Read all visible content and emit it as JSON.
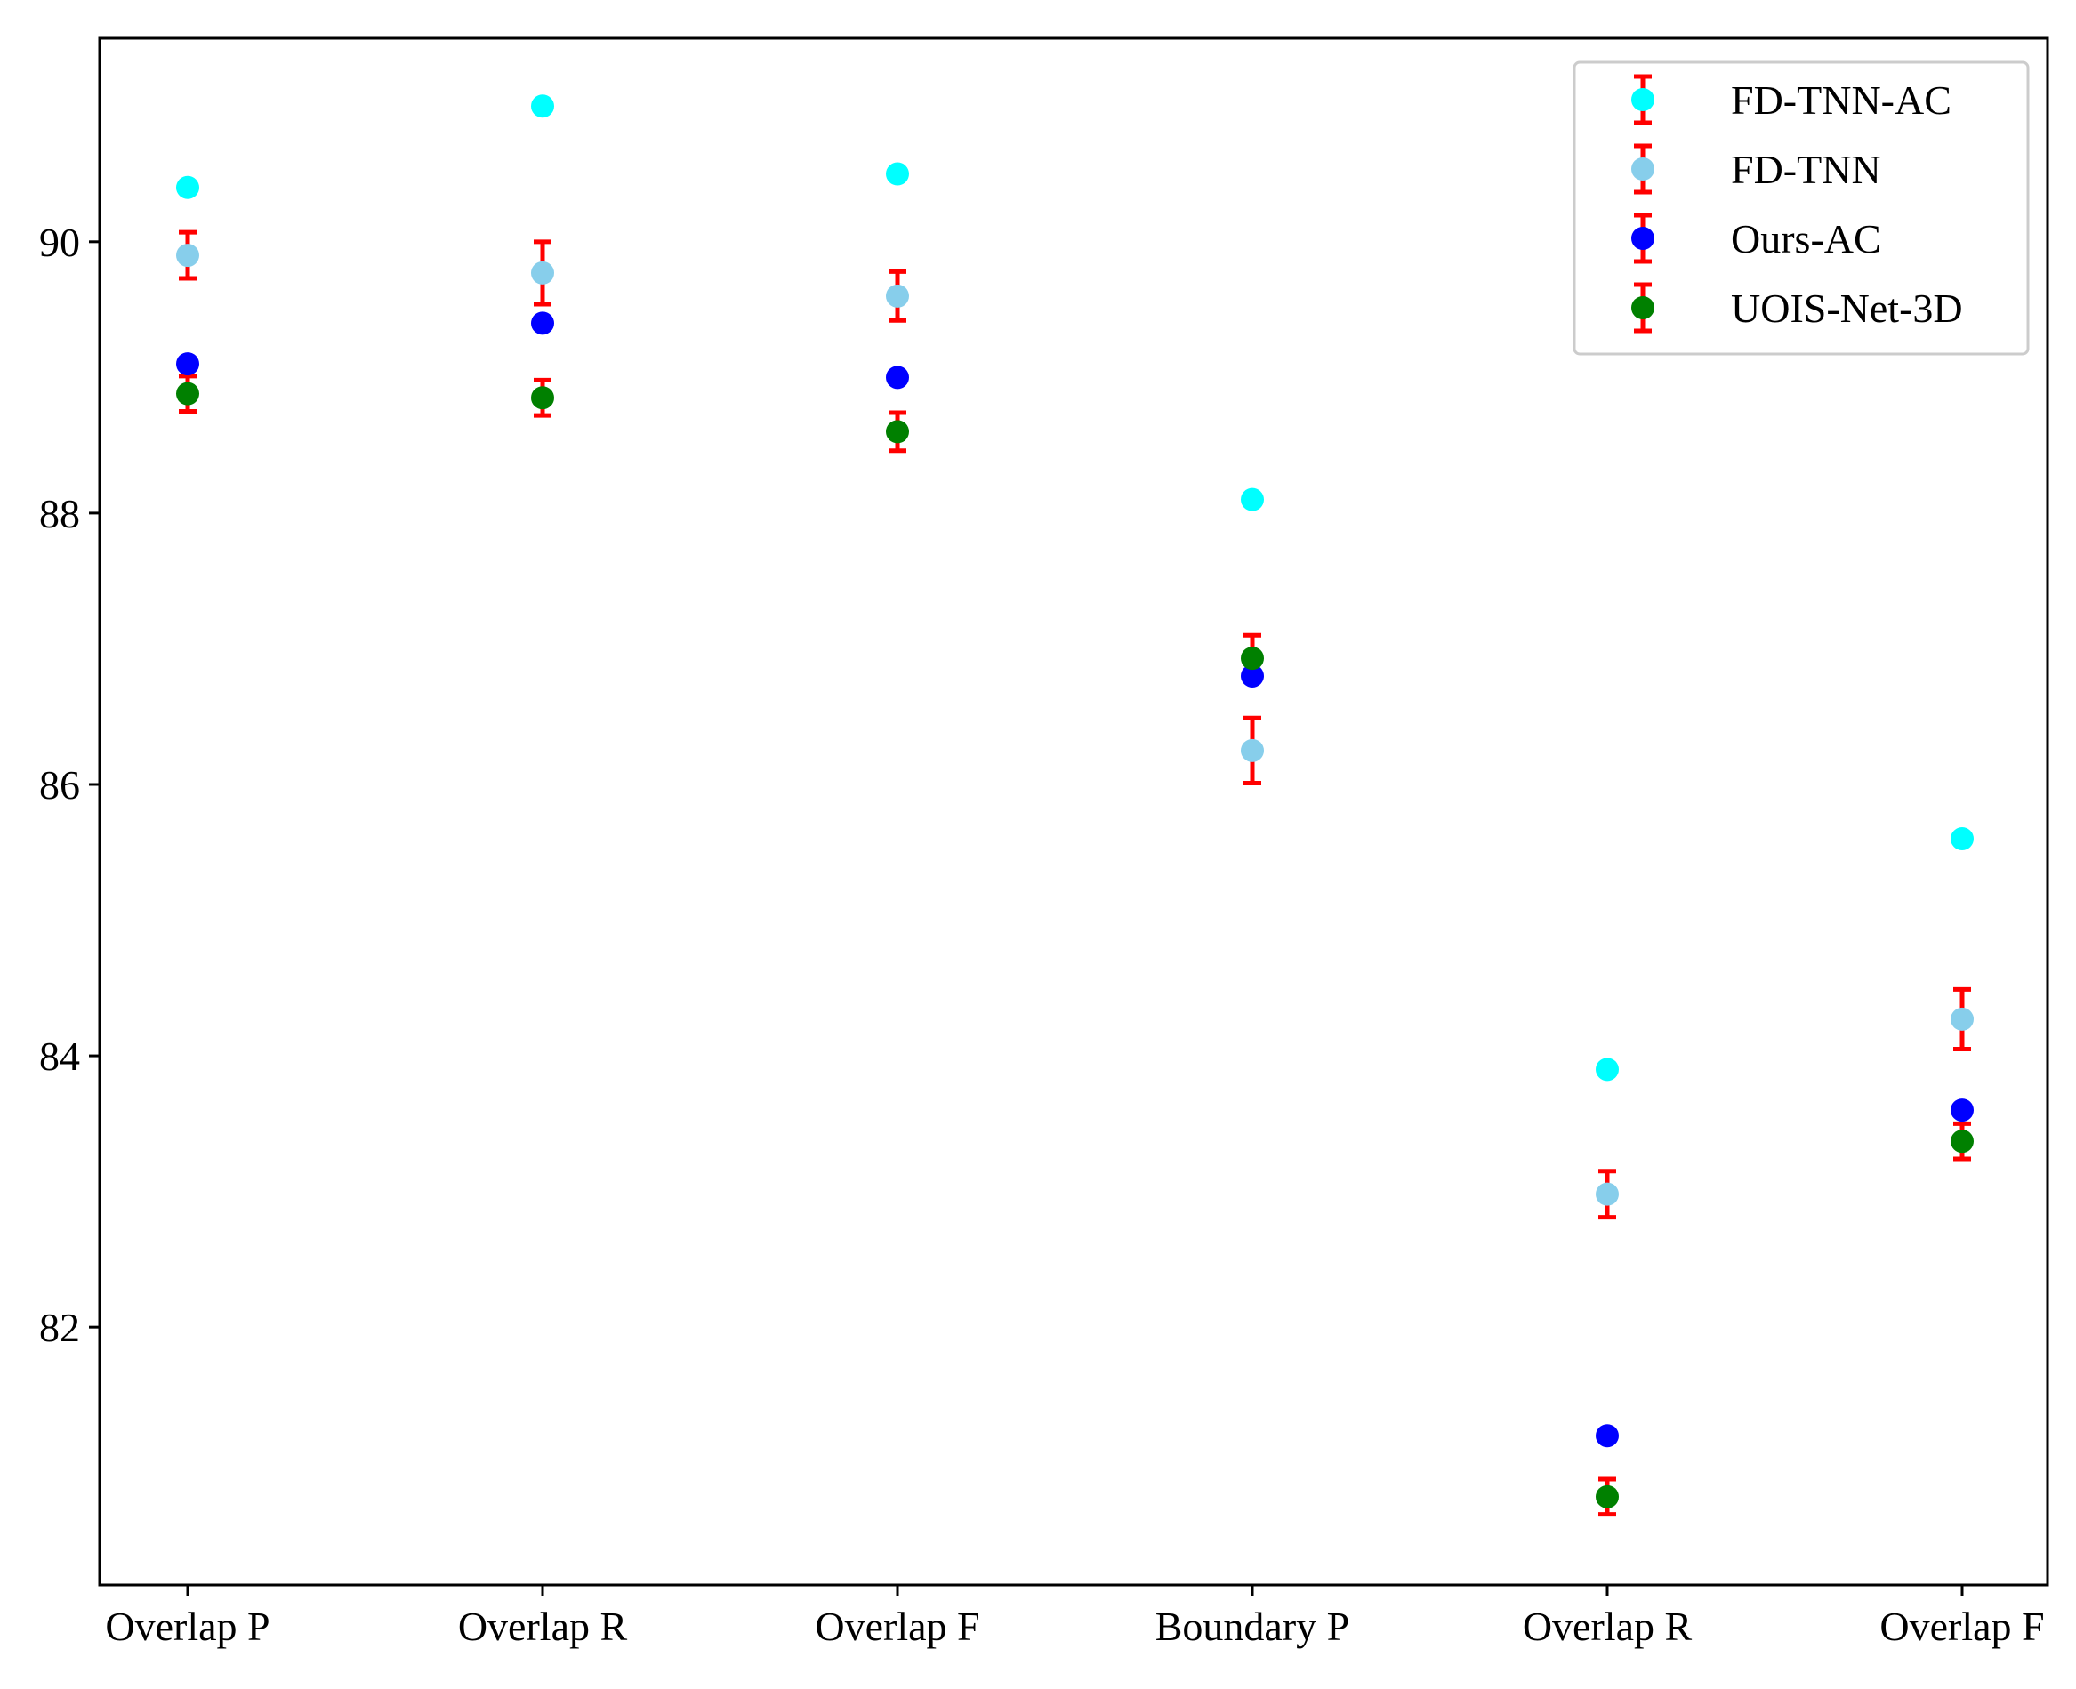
{
  "chart_data": {
    "type": "scatter",
    "title": "",
    "xlabel": "",
    "ylabel": "",
    "categories": [
      "Overlap P",
      "Overlap R",
      "Overlap F",
      "Boundary P",
      "Overlap R",
      "Overlap F"
    ],
    "ylim": [
      80.1,
      91.5
    ],
    "yticks": [
      82,
      84,
      86,
      88,
      90
    ],
    "grid": false,
    "legend_position": "top-right",
    "errorbar_color": "#ff0000",
    "series": [
      {
        "name": "FD-TNN-AC",
        "color": "#00ffff",
        "values": [
          90.4,
          91.0,
          90.5,
          88.1,
          83.9,
          85.6
        ],
        "errors": [
          0,
          0,
          0,
          0,
          0,
          0
        ]
      },
      {
        "name": "FD-TNN",
        "color": "#87ceeb",
        "values": [
          89.9,
          89.77,
          89.6,
          86.25,
          82.98,
          84.27
        ],
        "errors": [
          0.17,
          0.23,
          0.18,
          0.24,
          0.17,
          0.22
        ]
      },
      {
        "name": "Ours-AC",
        "color": "#0000ff",
        "values": [
          89.1,
          89.4,
          89.0,
          86.8,
          81.2,
          83.6
        ],
        "errors": [
          0,
          0,
          0,
          0,
          0,
          0
        ]
      },
      {
        "name": "UOIS-Net-3D",
        "color": "#008000",
        "values": [
          88.88,
          88.85,
          88.6,
          86.93,
          80.75,
          83.37
        ],
        "errors": [
          0.13,
          0.13,
          0.14,
          0.17,
          0.13,
          0.13
        ]
      }
    ]
  }
}
